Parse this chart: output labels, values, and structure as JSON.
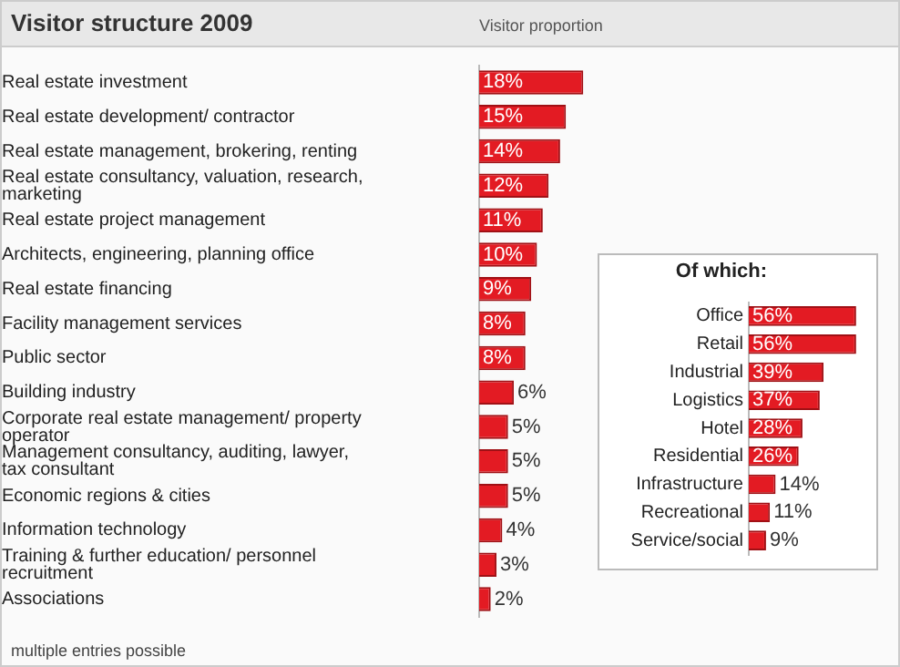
{
  "chart_data": [
    {
      "type": "bar",
      "orientation": "horizontal",
      "title": "Visitor structure 2009",
      "xlabel": "Visitor proportion",
      "categories": [
        "Real estate investment",
        "Real estate development/ contractor",
        "Real estate management, brokering, renting",
        "Real estate consultancy, valuation, research, marketing",
        "Real estate project management",
        "Architects, engineering, planning office",
        "Real estate financing",
        "Facility management services",
        "Public sector",
        "Building industry",
        "Corporate real estate management/ property operator",
        "Management consultancy, auditing, lawyer, tax consultant",
        "Economic regions & cities",
        "Information technology",
        "Training & further education/ personnel recruitment",
        "Associations"
      ],
      "values": [
        18,
        15,
        14,
        12,
        11,
        10,
        9,
        8,
        8,
        6,
        5,
        5,
        5,
        4,
        3,
        2
      ],
      "value_labels": [
        "18%",
        "15%",
        "14%",
        "12%",
        "11%",
        "10%",
        "9%",
        "8%",
        "8%",
        "6%",
        "5%",
        "5%",
        "5%",
        "4%",
        "3%",
        "2%"
      ],
      "color": "#e31b23",
      "tick_labels": "y",
      "grid": false,
      "legend": false,
      "annotations": [
        "multiple entries possible"
      ]
    },
    {
      "type": "bar",
      "orientation": "horizontal",
      "title": "Of which:",
      "categories": [
        "Office",
        "Retail",
        "Industrial",
        "Logistics",
        "Hotel",
        "Residential",
        "Infrastructure",
        "Recreational",
        "Service/social"
      ],
      "values": [
        56,
        56,
        39,
        37,
        28,
        26,
        14,
        11,
        9
      ],
      "value_labels": [
        "56%",
        "56%",
        "39%",
        "37%",
        "28%",
        "26%",
        "14%",
        "11%",
        "9%"
      ],
      "color": "#e31b23",
      "tick_labels": "y",
      "grid": false,
      "legend": false
    }
  ]
}
